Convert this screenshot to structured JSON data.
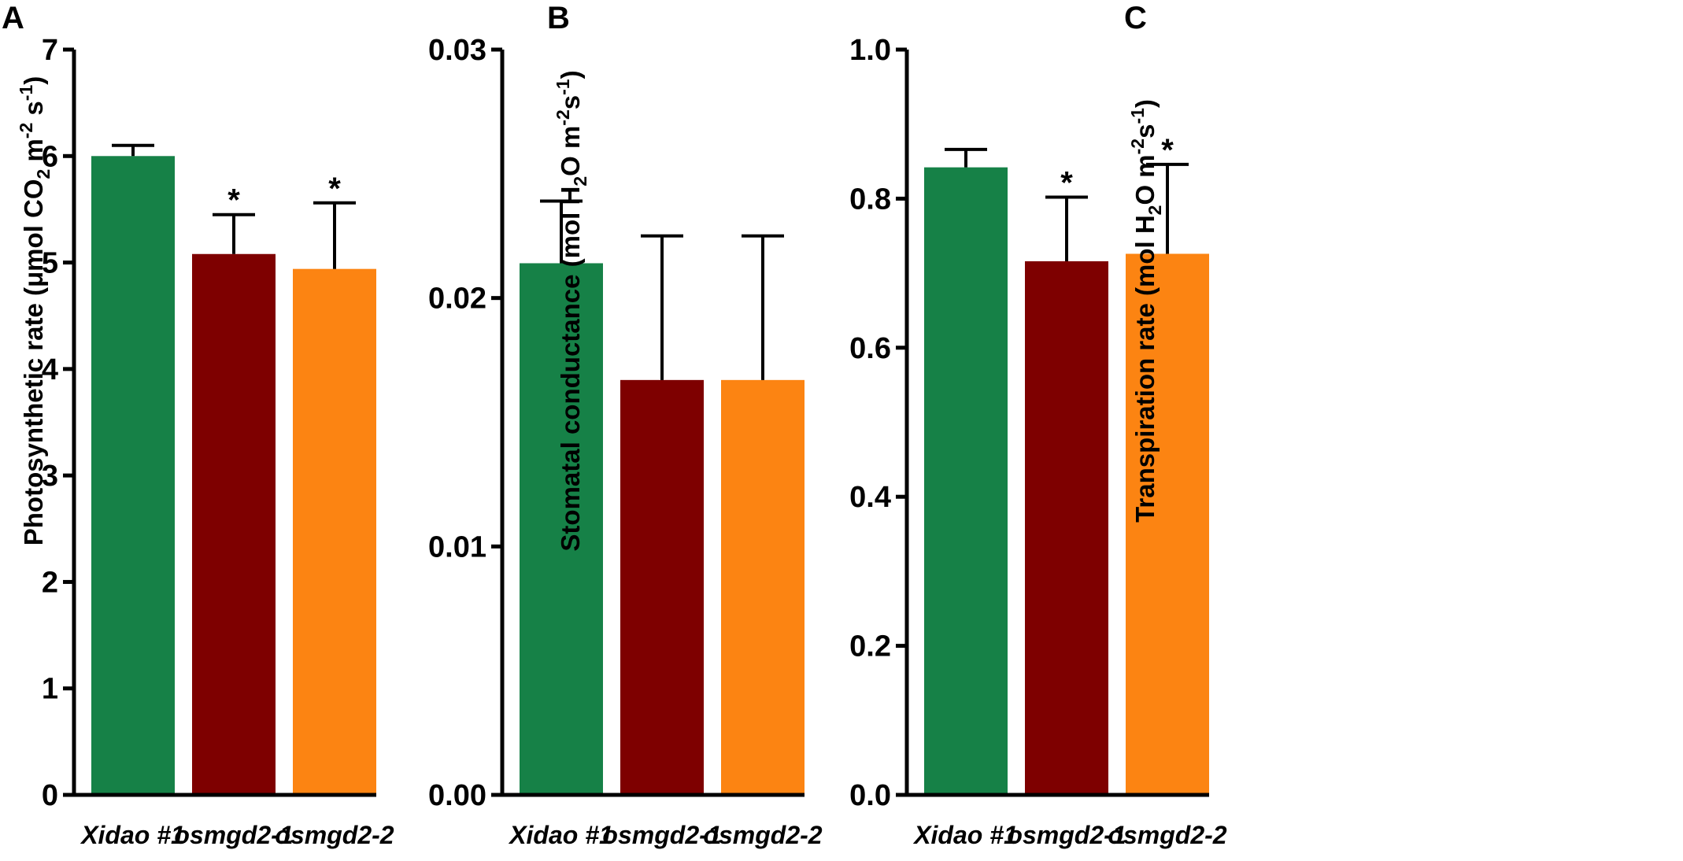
{
  "chart_data": [
    {
      "type": "bar",
      "panel": "A",
      "categories": [
        "Xidao #1",
        "osmgd2-1",
        "osmgd2-2"
      ],
      "values": [
        6.0,
        5.08,
        4.94
      ],
      "errors": [
        0.1,
        0.37,
        0.62
      ],
      "significance": [
        "",
        "*",
        "*"
      ],
      "colors": [
        "#168147",
        "#7e0000",
        "#fc8412"
      ],
      "ylabel": "Photosynthetic rate (μmol CO₂ m⁻² s⁻¹)",
      "ylabel_parts": {
        "a": "Photosynthetic rate (μmol CO",
        "sub": "2",
        "b": " m",
        "sup1": "-2",
        "c": " s",
        "sup2": "-1",
        "d": ")"
      },
      "ylim": [
        0,
        7
      ],
      "yticks": [
        0,
        1,
        2,
        3,
        4,
        5,
        6,
        7
      ],
      "ytick_labels": [
        "0",
        "1",
        "2",
        "3",
        "4",
        "5",
        "6",
        "7"
      ]
    },
    {
      "type": "bar",
      "panel": "B",
      "categories": [
        "Xidao #1",
        "osmgd2-1",
        "osmgd2-2"
      ],
      "values": [
        0.0214,
        0.0167,
        0.0167
      ],
      "errors": [
        0.0025,
        0.0058,
        0.0058
      ],
      "significance": [
        "",
        "",
        ""
      ],
      "colors": [
        "#168147",
        "#7e0000",
        "#fc8412"
      ],
      "ylabel": "Stomatal conductance (mol H₂O m⁻² s⁻¹)",
      "ylabel_parts": {
        "a": "Stomatal conductance (mol H",
        "sub": "2",
        "b": "O m",
        "sup1": "-2",
        "c": "s",
        "sup2": "-1",
        "d": ")"
      },
      "ylim": [
        0,
        0.03
      ],
      "yticks": [
        0,
        0.01,
        0.02,
        0.03
      ],
      "ytick_labels": [
        "0.00",
        "0.01",
        "0.02",
        "0.03"
      ]
    },
    {
      "type": "bar",
      "panel": "C",
      "categories": [
        "Xidao #1",
        "osmgd2-1",
        "osmgd2-2"
      ],
      "values": [
        0.842,
        0.716,
        0.726
      ],
      "errors": [
        0.024,
        0.086,
        0.12
      ],
      "significance": [
        "",
        "*",
        "*"
      ],
      "colors": [
        "#168147",
        "#7e0000",
        "#fc8412"
      ],
      "ylabel": "Transpiration rate (mol H₂O m⁻² s⁻¹)",
      "ylabel_parts": {
        "a": "Transpiration rate (mol H",
        "sub": "2",
        "b": "O m",
        "sup1": "-2",
        "c": "s",
        "sup2": "-1",
        "d": ")"
      },
      "ylim": [
        0,
        1.0
      ],
      "yticks": [
        0,
        0.2,
        0.4,
        0.6,
        0.8,
        1.0
      ],
      "ytick_labels": [
        "0.0",
        "0.2",
        "0.4",
        "0.6",
        "0.8",
        "1.0"
      ]
    }
  ]
}
